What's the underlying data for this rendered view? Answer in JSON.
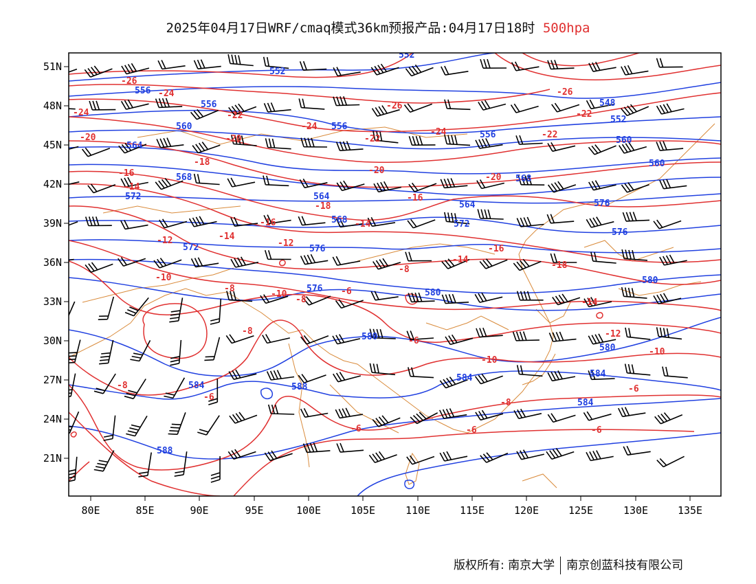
{
  "title": {
    "main": "2025年04月17日WRF/cmaq模式36km预报产品:04月17日18时",
    "level": "500hpa"
  },
  "colors": {
    "height": "#2040e0",
    "temperature": "#e03030",
    "coast": "#d98a3a",
    "wind": "#000000"
  },
  "axes": {
    "x_ticks": [
      "80E",
      "85E",
      "90E",
      "95E",
      "100E",
      "105E",
      "110E",
      "115E",
      "120E",
      "125E",
      "130E",
      "135E"
    ],
    "y_ticks": [
      "51N",
      "48N",
      "45N",
      "42N",
      "39N",
      "36N",
      "33N",
      "30N",
      "27N",
      "24N",
      "21N"
    ]
  },
  "height_labels": [
    "552",
    "552",
    "556",
    "556",
    "548",
    "552",
    "560",
    "556",
    "556",
    "564",
    "560",
    "560",
    "568",
    "572",
    "564",
    "564",
    "568",
    "576",
    "568",
    "572",
    "576",
    "576",
    "572",
    "580",
    "576",
    "580",
    "580",
    "580",
    "584",
    "584",
    "584",
    "588",
    "584",
    "588"
  ],
  "temp_labels": [
    "-26",
    "-24",
    "-26",
    "-26",
    "-22",
    "-24",
    "-24",
    "-22",
    "-24",
    "-22",
    "-20",
    "-20",
    "-22",
    "-18",
    "-20",
    "-20",
    "-16",
    "-14",
    "-18",
    "-16",
    "-16",
    "-14",
    "-14",
    "-12",
    "-12",
    "-14",
    "-16",
    "-18",
    "-10",
    "-8",
    "-10",
    "-8",
    "-6",
    "-8",
    "-10",
    "-6",
    "-12",
    "-14",
    "-10",
    "-8",
    "-8",
    "-6",
    "-6",
    "-8",
    "-6",
    "-6",
    "-6"
  ],
  "footer": {
    "copyright": "版权所有: 南京大学",
    "company": "南京创蓝科技有限公司"
  }
}
